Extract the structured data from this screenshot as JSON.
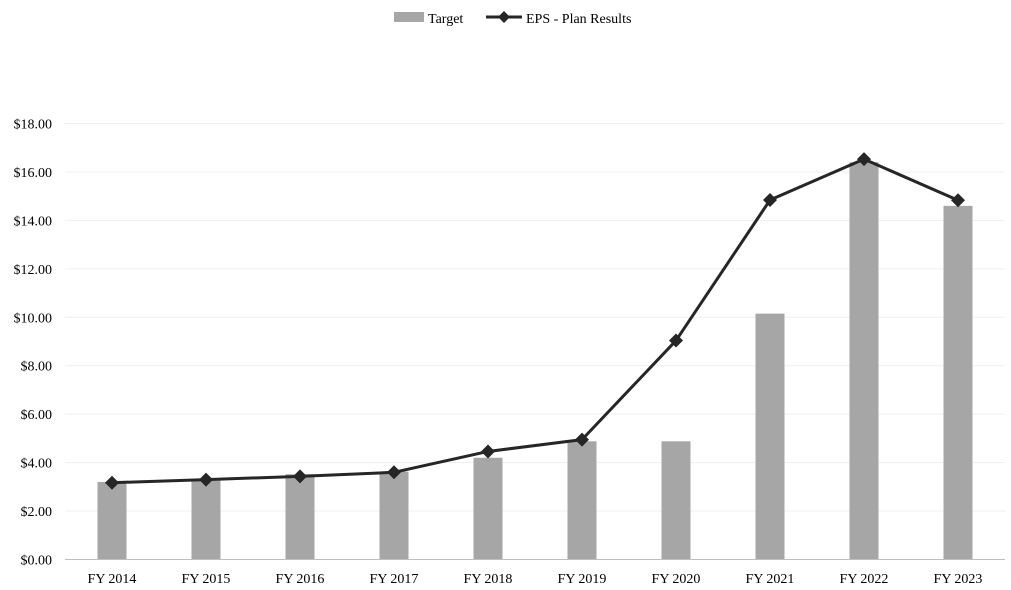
{
  "chart_data": {
    "type": "bar",
    "title": "",
    "xlabel": "",
    "ylabel": "",
    "categories": [
      "FY 2014",
      "FY 2015",
      "FY 2016",
      "FY 2017",
      "FY 2018",
      "FY 2019",
      "FY 2020",
      "FY 2021",
      "FY 2022",
      "FY 2023"
    ],
    "series": [
      {
        "name": "Target",
        "type": "bar",
        "color": "#a6a6a6",
        "values": [
          3.2,
          3.3,
          3.52,
          3.63,
          4.2,
          4.88,
          4.88,
          10.15,
          16.4,
          14.6
        ]
      },
      {
        "name": "EPS - Plan Results",
        "type": "line",
        "marker": "diamond",
        "color": "#262626",
        "values": [
          3.17,
          3.3,
          3.43,
          3.6,
          4.46,
          4.95,
          9.04,
          14.84,
          16.53,
          14.83
        ]
      }
    ],
    "ylim": [
      0,
      18
    ],
    "yticks": [
      0,
      2,
      4,
      6,
      8,
      10,
      12,
      14,
      16,
      18
    ],
    "ytick_labels": [
      "$0.00",
      "$2.00",
      "$4.00",
      "$6.00",
      "$8.00",
      "$10.00",
      "$12.00",
      "$14.00",
      "$16.00",
      "$18.00"
    ],
    "grid": true,
    "legend": "top-center"
  }
}
